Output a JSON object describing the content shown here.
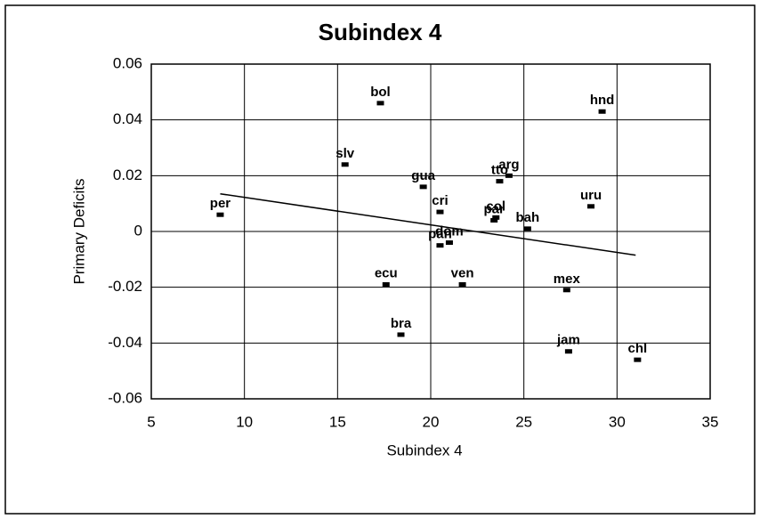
{
  "chart_data": {
    "type": "scatter",
    "title": "Subindex 4",
    "x_label": "Subindex 4",
    "y_label": "Primary Deficits",
    "labels": [
      "per",
      "bol",
      "slv",
      "hnd",
      "gua",
      "arg",
      "tto",
      "cri",
      "col",
      "par",
      "uru",
      "bah",
      "dom",
      "pan",
      "ecu",
      "ven",
      "mex",
      "bra",
      "jam",
      "chl"
    ],
    "x": [
      8.7,
      17.3,
      15.4,
      29.2,
      19.6,
      24.2,
      23.7,
      20.5,
      23.5,
      23.4,
      28.6,
      25.2,
      21.0,
      20.5,
      17.6,
      21.7,
      27.3,
      18.4,
      27.4,
      31.1
    ],
    "y": [
      0.006,
      0.046,
      0.024,
      0.043,
      0.016,
      0.02,
      0.018,
      0.007,
      0.005,
      0.004,
      0.009,
      0.001,
      -0.004,
      -0.005,
      -0.019,
      -0.019,
      -0.021,
      -0.037,
      -0.043,
      -0.046
    ],
    "color": "#000000",
    "trendline": {
      "x": [
        8.7,
        31
      ],
      "y": [
        0.0135,
        -0.0085
      ]
    },
    "xlim": [
      5,
      35
    ],
    "xticks": [
      5,
      10,
      15,
      20,
      25,
      30,
      35
    ],
    "ylim": [
      -0.06,
      0.06
    ],
    "yticks": [
      -0.06,
      -0.04,
      -0.02,
      0,
      0.02,
      0.04,
      0.06
    ],
    "grid": true
  }
}
